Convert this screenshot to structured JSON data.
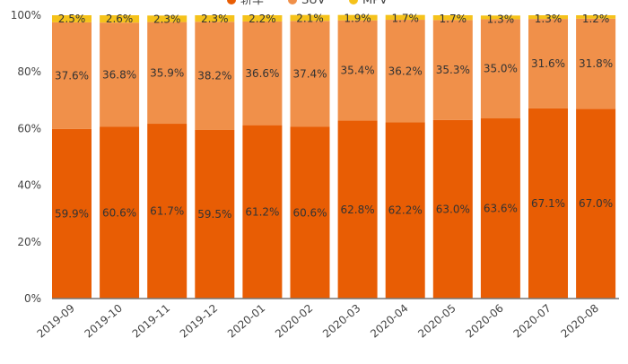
{
  "chart_data": {
    "type": "bar",
    "stacked": true,
    "categories": [
      "2019-09",
      "2019-10",
      "2019-11",
      "2019-12",
      "2020-01",
      "2020-02",
      "2020-03",
      "2020-04",
      "2020-05",
      "2020-06",
      "2020-07",
      "2020-08"
    ],
    "series": [
      {
        "name": "轿车",
        "color": "#e85d04",
        "values": [
          59.9,
          60.6,
          61.7,
          59.5,
          61.2,
          60.6,
          62.8,
          62.2,
          63.0,
          63.6,
          67.1,
          67.0
        ]
      },
      {
        "name": "SUV",
        "color": "#f0904a",
        "values": [
          37.6,
          36.8,
          35.9,
          38.2,
          36.6,
          37.4,
          35.4,
          36.2,
          35.3,
          35.0,
          31.6,
          31.8
        ]
      },
      {
        "name": "MPV",
        "color": "#f5c21b",
        "values": [
          2.5,
          2.6,
          2.3,
          2.3,
          2.2,
          2.1,
          1.9,
          1.7,
          1.7,
          1.3,
          1.3,
          1.2
        ]
      }
    ],
    "yticks": [
      "0%",
      "20%",
      "40%",
      "60%",
      "80%",
      "100%"
    ],
    "ylim": [
      0,
      100
    ],
    "grid": false,
    "legend": "top"
  }
}
